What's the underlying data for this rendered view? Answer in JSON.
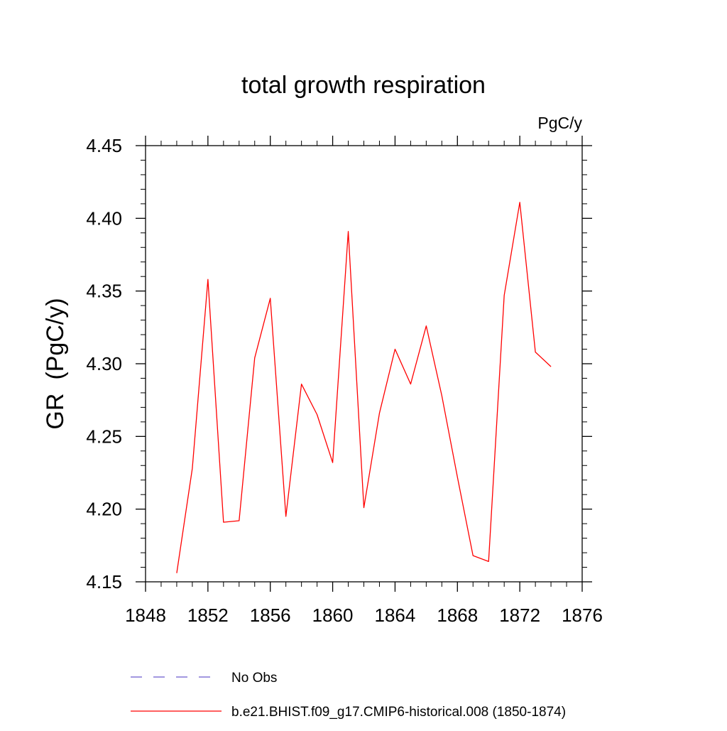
{
  "chart_data": {
    "type": "line",
    "title": "total growth respiration",
    "units_label": "PgC/y",
    "ylabel": "GR  (PgC/y)",
    "xlabel": "",
    "xlim": [
      1848,
      1876
    ],
    "ylim": [
      4.15,
      4.45
    ],
    "x_ticks": [
      1848,
      1852,
      1856,
      1860,
      1864,
      1868,
      1872,
      1876
    ],
    "x_tick_labels": [
      "1848",
      "1852",
      "1856",
      "1860",
      "1864",
      "1868",
      "1872",
      "1876"
    ],
    "y_ticks": [
      4.15,
      4.2,
      4.25,
      4.3,
      4.35,
      4.4,
      4.45
    ],
    "y_tick_labels": [
      "4.15",
      "4.20",
      "4.25",
      "4.30",
      "4.35",
      "4.40",
      "4.45"
    ],
    "grid": false,
    "legend_position": "bottom",
    "series": [
      {
        "name": "b.e21.BHIST.f09_g17.CMIP6-historical.008 (1850-1874)",
        "color": "#ff0000",
        "dash": "solid",
        "x": [
          1850,
          1851,
          1852,
          1853,
          1854,
          1855,
          1856,
          1857,
          1858,
          1859,
          1860,
          1861,
          1862,
          1863,
          1864,
          1865,
          1866,
          1867,
          1868,
          1869,
          1870,
          1871,
          1872,
          1873,
          1874
        ],
        "values": [
          4.156,
          4.228,
          4.358,
          4.191,
          4.192,
          4.304,
          4.345,
          4.195,
          4.286,
          4.265,
          4.232,
          4.391,
          4.201,
          4.266,
          4.31,
          4.286,
          4.326,
          4.278,
          4.222,
          4.168,
          4.164,
          4.347,
          4.411,
          4.308,
          4.298
        ]
      },
      {
        "name": "No Obs",
        "color": "#6a5acd",
        "dash": "dashed",
        "x": [],
        "values": []
      }
    ]
  }
}
